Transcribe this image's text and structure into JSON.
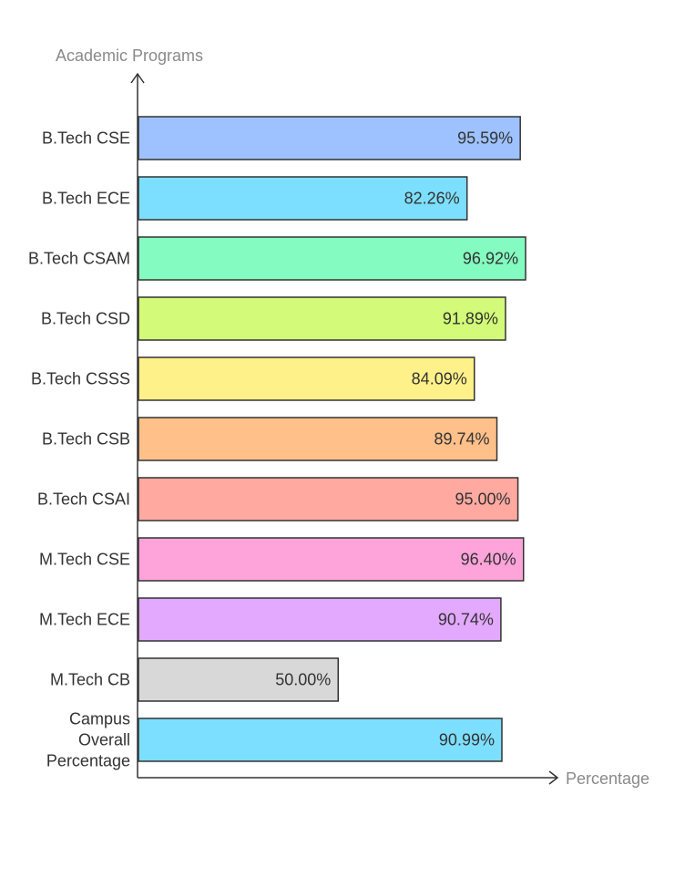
{
  "chart_data": {
    "type": "bar",
    "orientation": "horizontal",
    "ylabel": "Academic Programs",
    "xlabel": "Percentage",
    "categories": [
      "B.Tech CSE",
      "B.Tech ECE",
      "B.Tech CSAM",
      "B.Tech CSD",
      "B.Tech CSSS",
      "B.Tech CSB",
      "B.Tech CSAI",
      "M.Tech CSE",
      "M.Tech ECE",
      "M.Tech CB",
      "Campus Overall Percentage"
    ],
    "values": [
      95.59,
      82.26,
      96.92,
      91.89,
      84.09,
      89.74,
      95.0,
      96.4,
      90.74,
      50.0,
      90.99
    ],
    "value_labels": [
      "95.59%",
      "82.26%",
      "96.92%",
      "91.89%",
      "84.09%",
      "89.74%",
      "95.00%",
      "96.40%",
      "90.74%",
      "50.00%",
      "90.99%"
    ],
    "colors": [
      "#9dc2ff",
      "#7ddfff",
      "#84fbc0",
      "#d3fa78",
      "#fff189",
      "#ffc089",
      "#ffa9a0",
      "#ffa4da",
      "#e3a9ff",
      "#d8d8d8",
      "#7ddfff"
    ],
    "xlim": [
      0,
      100
    ],
    "grid": false,
    "legend": "none"
  }
}
